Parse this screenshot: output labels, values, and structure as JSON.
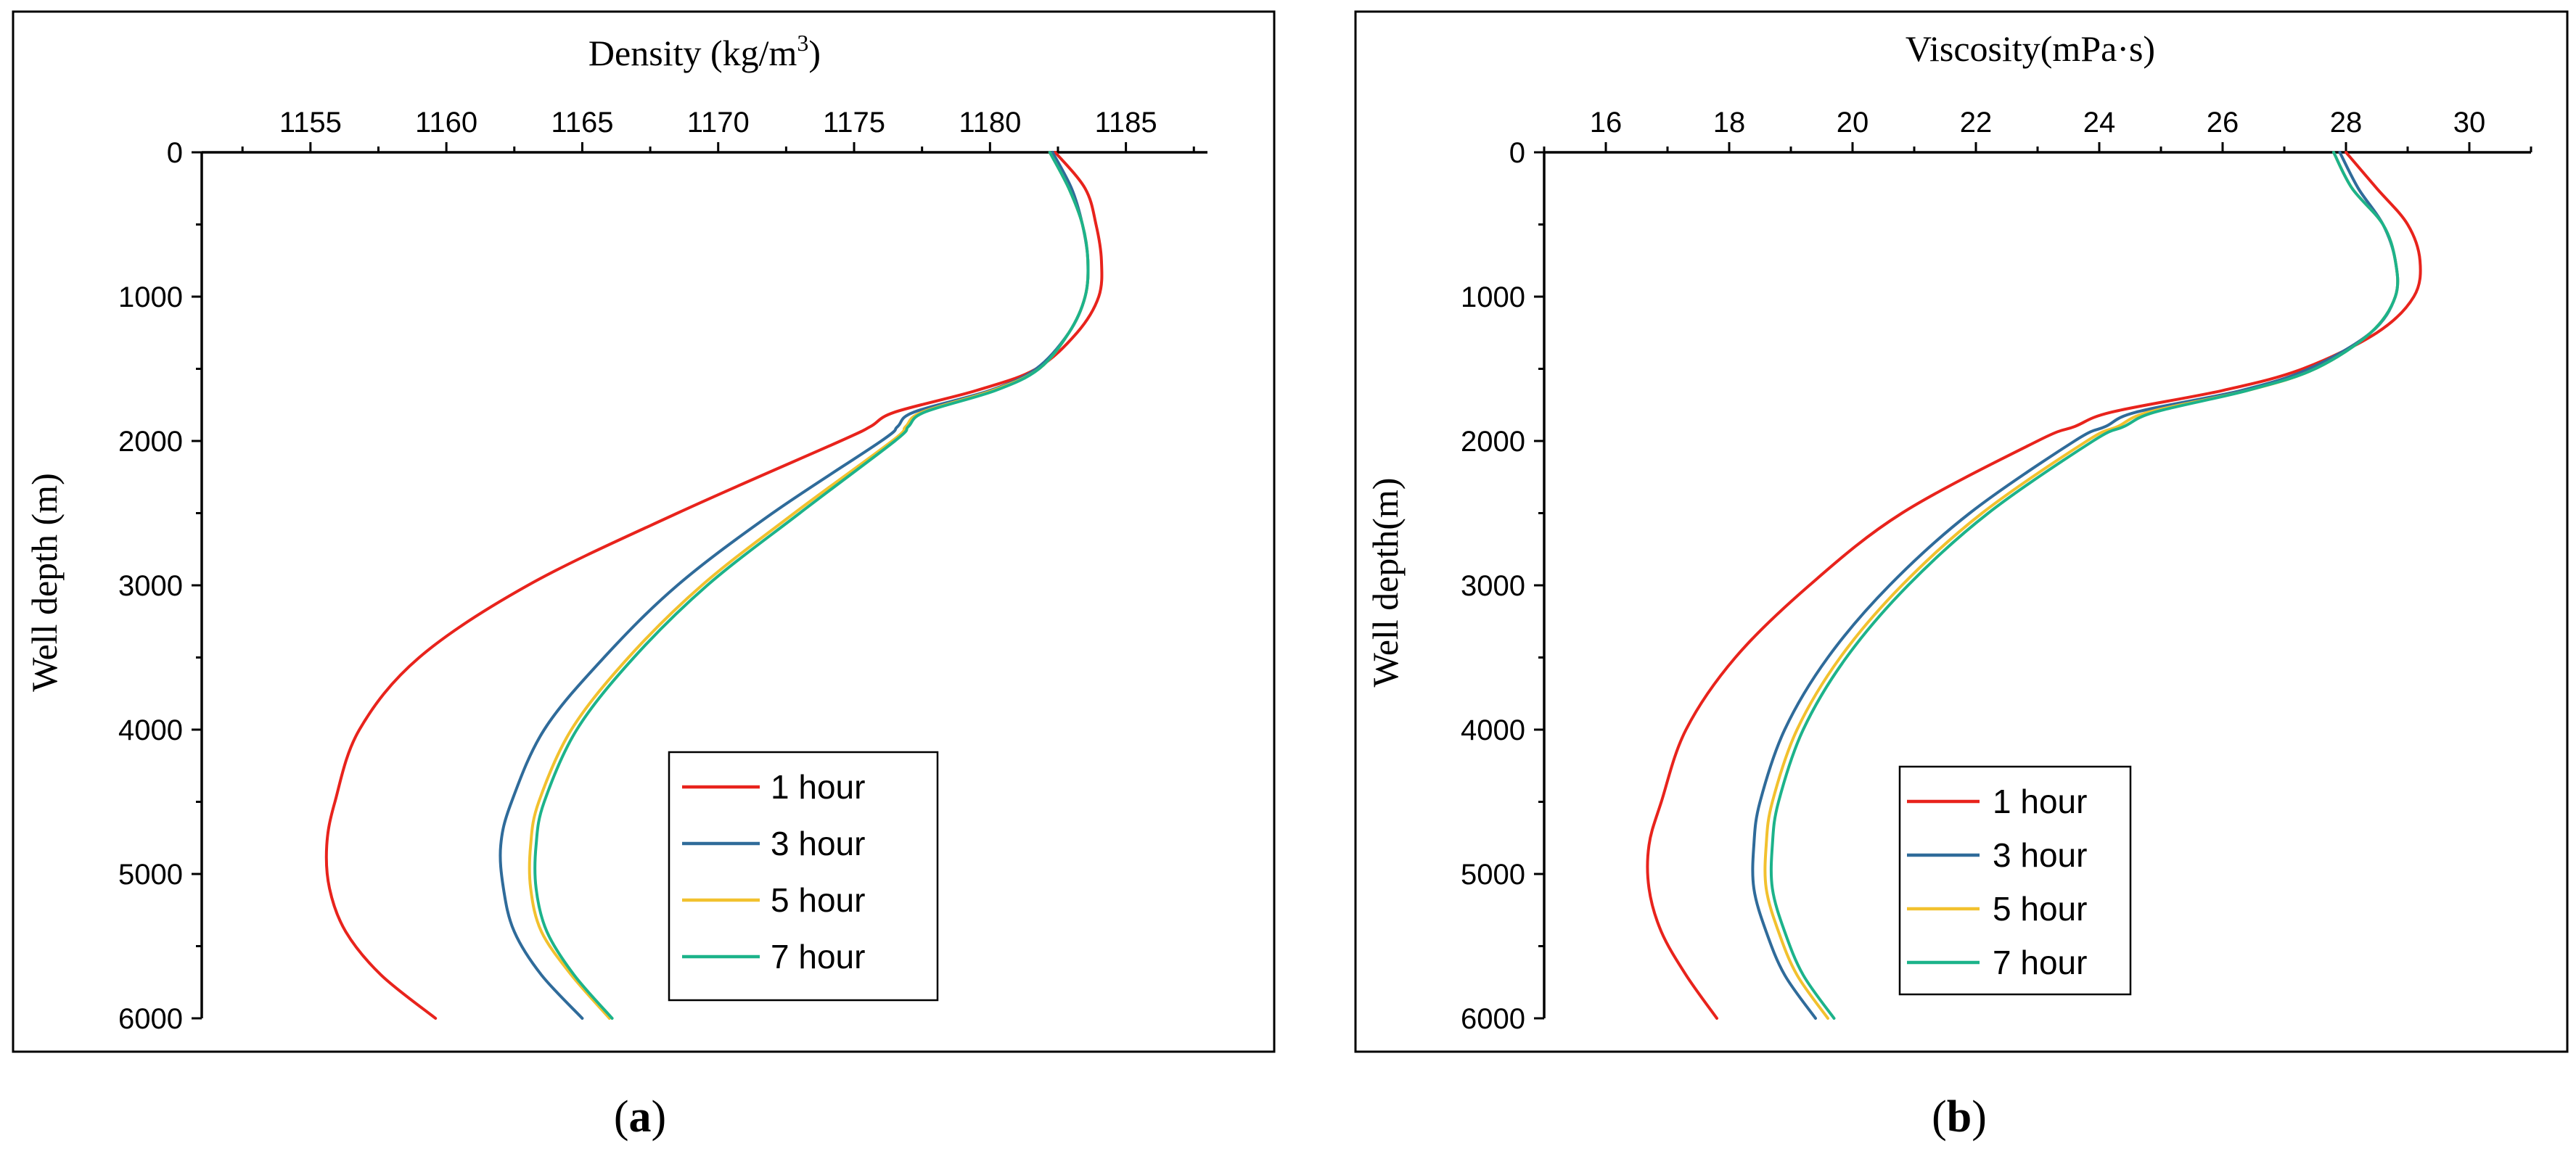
{
  "chart_data": [
    {
      "type": "line",
      "panel_label": "a",
      "title": "",
      "xlabel": "Density (kg/m",
      "xlabel_sup": "3",
      "xlabel_close": ")",
      "ylabel": "Well depth (m)",
      "x_axis_position": "top",
      "y_inverted": true,
      "xlim": [
        1151,
        1188
      ],
      "ylim": [
        0,
        6000
      ],
      "xticks": [
        1155,
        1160,
        1165,
        1170,
        1175,
        1180,
        1185
      ],
      "xtick_labels": [
        "1155",
        "1160",
        "1165",
        "1170",
        "1175",
        "1180",
        "1185"
      ],
      "yticks": [
        0,
        1000,
        2000,
        3000,
        4000,
        5000,
        6000
      ],
      "ytick_labels": [
        "0",
        "1000",
        "2000",
        "3000",
        "4000",
        "5000",
        "6000"
      ],
      "y": [
        0,
        250,
        500,
        750,
        1000,
        1250,
        1500,
        1650,
        1800,
        1900,
        2000,
        2500,
        3000,
        3500,
        4000,
        4500,
        4800,
        5100,
        5400,
        5700,
        6000
      ],
      "legend_position": "lower-right",
      "series": [
        {
          "name": "1 hour",
          "color": "#e8231c",
          "values": [
            1182.4,
            1183.5,
            1183.9,
            1184.1,
            1184.0,
            1183.2,
            1181.7,
            1179.5,
            1176.5,
            1175.6,
            1174.5,
            1168.5,
            1163.0,
            1159.0,
            1156.8,
            1155.9,
            1155.6,
            1155.7,
            1156.3,
            1157.6,
            1159.6
          ]
        },
        {
          "name": "3 hour",
          "color": "#2f6b9a",
          "values": [
            1182.3,
            1183.0,
            1183.4,
            1183.6,
            1183.5,
            1182.9,
            1181.7,
            1180.0,
            1177.2,
            1176.6,
            1176.0,
            1172.0,
            1168.5,
            1165.8,
            1163.6,
            1162.4,
            1162.0,
            1162.1,
            1162.5,
            1163.5,
            1165.0
          ]
        },
        {
          "name": "5 hour",
          "color": "#f2c12e",
          "values": [
            1182.2,
            1182.9,
            1183.4,
            1183.6,
            1183.5,
            1182.9,
            1181.8,
            1180.1,
            1177.5,
            1176.9,
            1176.4,
            1172.8,
            1169.4,
            1166.7,
            1164.6,
            1163.4,
            1163.1,
            1163.1,
            1163.5,
            1164.6,
            1166.0
          ]
        },
        {
          "name": "7 hour",
          "color": "#1cb38a",
          "values": [
            1182.2,
            1182.9,
            1183.4,
            1183.6,
            1183.5,
            1182.9,
            1181.8,
            1180.2,
            1177.6,
            1177.0,
            1176.5,
            1173.0,
            1169.6,
            1166.9,
            1164.8,
            1163.6,
            1163.3,
            1163.3,
            1163.7,
            1164.7,
            1166.1
          ]
        }
      ]
    },
    {
      "type": "line",
      "panel_label": "b",
      "title": "",
      "xlabel": "Viscosity(mPa·s)",
      "xlabel_sup": "",
      "xlabel_close": "",
      "ylabel": "Well depth(m)",
      "x_axis_position": "top",
      "y_inverted": true,
      "xlim": [
        15,
        31
      ],
      "ylim": [
        0,
        6000
      ],
      "xticks": [
        16,
        18,
        20,
        22,
        24,
        26,
        28,
        30
      ],
      "xtick_labels": [
        "16",
        "18",
        "20",
        "22",
        "24",
        "26",
        "28",
        "30"
      ],
      "yticks": [
        0,
        1000,
        2000,
        3000,
        4000,
        5000,
        6000
      ],
      "ytick_labels": [
        "0",
        "1000",
        "2000",
        "3000",
        "4000",
        "5000",
        "6000"
      ],
      "y": [
        0,
        250,
        500,
        750,
        1000,
        1250,
        1500,
        1650,
        1800,
        1900,
        2000,
        2500,
        3000,
        3500,
        4000,
        4500,
        4800,
        5100,
        5400,
        5700,
        6000
      ],
      "legend_position": "lower-right",
      "series": [
        {
          "name": "1 hour",
          "color": "#e8231c",
          "values": [
            28.0,
            28.5,
            29.0,
            29.2,
            29.1,
            28.5,
            27.3,
            26.0,
            24.2,
            23.6,
            23.0,
            20.8,
            19.3,
            18.1,
            17.3,
            16.9,
            16.7,
            16.7,
            16.9,
            17.3,
            17.8
          ]
        },
        {
          "name": "3 hour",
          "color": "#2f6b9a",
          "values": [
            27.9,
            28.2,
            28.6,
            28.8,
            28.8,
            28.4,
            27.4,
            26.3,
            24.6,
            24.1,
            23.6,
            21.9,
            20.6,
            19.6,
            18.9,
            18.5,
            18.4,
            18.4,
            18.6,
            18.9,
            19.4
          ]
        },
        {
          "name": "5 hour",
          "color": "#f2c12e",
          "values": [
            27.8,
            28.1,
            28.6,
            28.8,
            28.8,
            28.4,
            27.5,
            26.4,
            24.8,
            24.3,
            23.8,
            22.1,
            20.8,
            19.8,
            19.1,
            18.7,
            18.6,
            18.6,
            18.8,
            19.1,
            19.6
          ]
        },
        {
          "name": "7 hour",
          "color": "#1cb38a",
          "values": [
            27.8,
            28.1,
            28.6,
            28.8,
            28.8,
            28.4,
            27.5,
            26.4,
            24.9,
            24.4,
            23.9,
            22.2,
            20.9,
            19.9,
            19.2,
            18.8,
            18.7,
            18.7,
            18.9,
            19.2,
            19.7
          ]
        }
      ]
    }
  ]
}
